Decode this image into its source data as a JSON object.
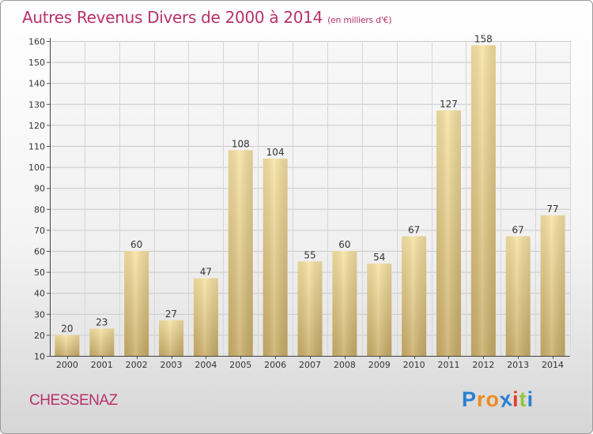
{
  "title": {
    "main": "Autres Revenus Divers de 2000 à 2014",
    "unit": "(en milliers d'€)"
  },
  "town": "CHESSENAZ",
  "logo": {
    "letters": [
      "P",
      "r",
      "o",
      "x",
      "i",
      "t",
      "i"
    ],
    "colors": [
      "#2a7fd0",
      "#f08a1c",
      "#f08a1c",
      "#2a7fd0",
      "#e83a2a",
      "#8cc83c",
      "#2a7fd0"
    ]
  },
  "colors": {
    "bar_light": "#f7e2a3",
    "bar_dark": "#c9ad68",
    "text": "#b8316a"
  },
  "chart_data": {
    "type": "bar",
    "categories": [
      "2000",
      "2001",
      "2002",
      "2003",
      "2004",
      "2005",
      "2006",
      "2007",
      "2008",
      "2009",
      "2010",
      "2011",
      "2012",
      "2013",
      "2014"
    ],
    "values": [
      20,
      23,
      60,
      27,
      47,
      108,
      104,
      55,
      60,
      54,
      67,
      127,
      158,
      67,
      77
    ],
    "title": "Autres Revenus Divers de 2000 à 2014",
    "xlabel": "",
    "ylabel": "",
    "ylim": [
      10,
      160
    ],
    "yticks": [
      10,
      20,
      30,
      40,
      50,
      60,
      70,
      80,
      90,
      100,
      110,
      120,
      130,
      140,
      150,
      160
    ],
    "grid": true,
    "data_labels": true
  }
}
